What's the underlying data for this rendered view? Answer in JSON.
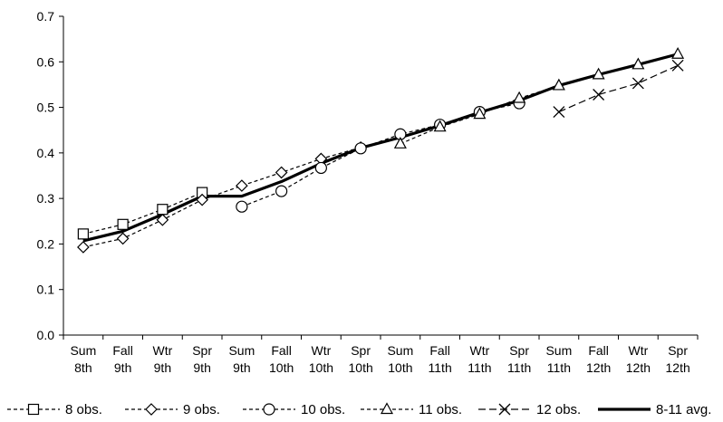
{
  "chart_data": {
    "type": "line",
    "categories": [
      [
        "Sum",
        "8th"
      ],
      [
        "Fall",
        "9th"
      ],
      [
        "Wtr",
        "9th"
      ],
      [
        "Spr",
        "9th"
      ],
      [
        "Sum",
        "9th"
      ],
      [
        "Fall",
        "10th"
      ],
      [
        "Wtr",
        "10th"
      ],
      [
        "Spr",
        "10th"
      ],
      [
        "Sum",
        "10th"
      ],
      [
        "Fall",
        "11th"
      ],
      [
        "Wtr",
        "11th"
      ],
      [
        "Spr",
        "11th"
      ],
      [
        "Sum",
        "11th"
      ],
      [
        "Fall",
        "12th"
      ],
      [
        "Wtr",
        "12th"
      ],
      [
        "Spr",
        "12th"
      ]
    ],
    "ylim": [
      0,
      0.7
    ],
    "yticks": [
      "0.0",
      "0.1",
      "0.2",
      "0.3",
      "0.4",
      "0.5",
      "0.6",
      "0.7"
    ],
    "grid": false,
    "legend_position": "bottom",
    "series": [
      {
        "name": "8 obs.",
        "marker": "square",
        "dash": "dashed",
        "color": "#000000",
        "values": [
          0.222,
          0.243,
          0.276,
          0.313,
          null,
          null,
          null,
          null,
          null,
          null,
          null,
          null,
          null,
          null,
          null,
          null
        ]
      },
      {
        "name": "9 obs.",
        "marker": "diamond",
        "dash": "dashed",
        "color": "#000000",
        "values": [
          0.193,
          0.212,
          0.253,
          0.297,
          0.328,
          0.357,
          0.387,
          0.412,
          null,
          null,
          null,
          null,
          null,
          null,
          null,
          null
        ]
      },
      {
        "name": "10 obs.",
        "marker": "circle",
        "dash": "dashed",
        "color": "#000000",
        "values": [
          null,
          null,
          null,
          null,
          0.282,
          0.316,
          0.367,
          0.41,
          0.441,
          0.462,
          0.49,
          0.509,
          null,
          null,
          null,
          null
        ]
      },
      {
        "name": "11 obs.",
        "marker": "triangle",
        "dash": "dashed",
        "color": "#000000",
        "values": [
          null,
          null,
          null,
          null,
          null,
          null,
          null,
          null,
          0.42,
          0.457,
          0.485,
          0.52,
          0.548,
          0.572,
          0.594,
          0.617
        ]
      },
      {
        "name": "12 obs.",
        "marker": "x",
        "dash": "longdash",
        "color": "#000000",
        "values": [
          null,
          null,
          null,
          null,
          null,
          null,
          null,
          null,
          null,
          null,
          null,
          null,
          0.49,
          0.528,
          0.553,
          0.592
        ]
      },
      {
        "name": "8-11 avg.",
        "marker": "none",
        "dash": "solid",
        "color": "#000000",
        "values": [
          0.207,
          0.228,
          0.265,
          0.305,
          0.305,
          0.337,
          0.377,
          0.411,
          0.434,
          0.46,
          0.489,
          0.515,
          0.548,
          0.572,
          0.594,
          0.617
        ]
      }
    ]
  }
}
